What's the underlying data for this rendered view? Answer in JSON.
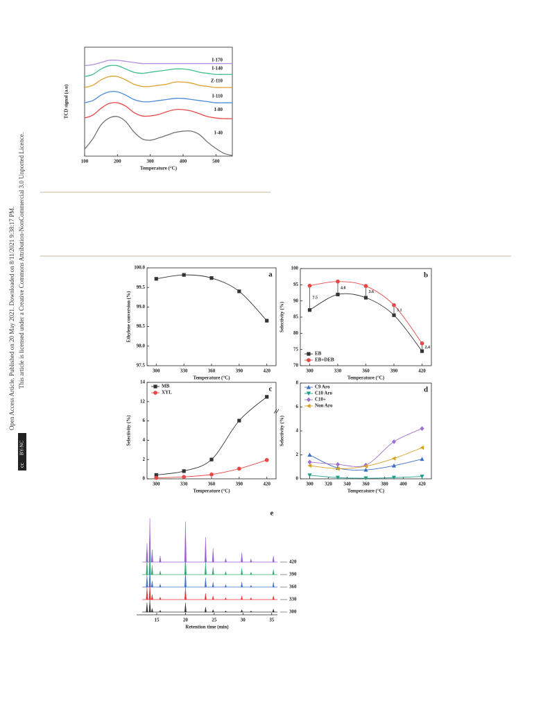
{
  "sidebar": {
    "line1": "Open Access Article. Published on 20 May 2021. Downloaded on 8/11/2021 9:38:17 PM.",
    "line2": "This article is licensed under a Creative Commons Attribution-NonCommercial 3.0 Unported Licence.",
    "badge_cc": "cc",
    "badge_by": "BY-NC"
  },
  "chart_data": [
    {
      "type": "line",
      "xlabel": "Temperature (°C)",
      "ylabel": "TCD signal (a.u)",
      "inline_labels": true,
      "x": [
        100,
        125,
        150,
        175,
        200,
        225,
        250,
        275,
        300,
        325,
        350,
        375,
        400,
        425,
        450,
        475,
        500,
        525,
        550
      ],
      "xlim": [
        100,
        550
      ],
      "xticks": [
        100,
        200,
        300,
        400,
        500
      ],
      "ylim": [
        0,
        100
      ],
      "series": [
        {
          "name": "I-170",
          "color": "#b28ee0",
          "values": [
            83,
            84,
            86,
            88,
            88,
            87,
            86,
            85,
            85,
            85,
            85,
            85,
            85,
            85,
            85,
            85,
            85,
            85,
            85
          ]
        },
        {
          "name": "I-140",
          "color": "#3cbf8a",
          "values": [
            73,
            75,
            80,
            83,
            83,
            80,
            77,
            76,
            77,
            78,
            79,
            80,
            80,
            79,
            77,
            76,
            75,
            75,
            75
          ]
        },
        {
          "name": "Z-110",
          "color": "#e0a030",
          "values": [
            63,
            65,
            70,
            73,
            73,
            70,
            66,
            64,
            64,
            65,
            66,
            68,
            68,
            67,
            65,
            64,
            63,
            63,
            63
          ]
        },
        {
          "name": "I-110",
          "color": "#4a8ad8",
          "values": [
            49,
            51,
            56,
            59,
            59,
            56,
            52,
            50,
            50,
            51,
            52,
            53,
            53,
            52,
            51,
            50,
            49,
            49,
            49
          ]
        },
        {
          "name": "I-80",
          "color": "#e84848",
          "values": [
            35.0,
            37.6,
            43.9,
            48.4,
            49.0,
            45.9,
            40.1,
            36.9,
            36.9,
            38.2,
            40.8,
            42.7,
            42.7,
            41.4,
            38.9,
            36.3,
            35.0,
            34.4,
            34.4
          ]
        },
        {
          "name": "I-40",
          "color": "#707070",
          "values": [
            6.4,
            15.9,
            28.7,
            35.0,
            36.3,
            31.8,
            22.3,
            15.9,
            14.6,
            16.6,
            19.1,
            21.7,
            22.9,
            22.9,
            19.7,
            12.7,
            7.0,
            2.5,
            0.6
          ]
        }
      ]
    },
    {
      "type": "line",
      "panel_label": "a",
      "xlabel": "Temperature (°C)",
      "ylabel": "Ethylene conversion (%)",
      "x": [
        300,
        330,
        360,
        390,
        420
      ],
      "xlim": [
        290,
        430
      ],
      "xticks": [
        300,
        330,
        360,
        390,
        420
      ],
      "ylim": [
        97.5,
        100.0
      ],
      "yticks": [
        97.5,
        {
          "value": 98.0,
          "label": "98.0"
        },
        98.5,
        {
          "value": 99.0,
          "label": "99.0"
        },
        99.5,
        {
          "value": 100.0,
          "label": "100.0"
        }
      ],
      "series": [
        {
          "color": "#333333",
          "marker": "square",
          "values": [
            99.72,
            99.82,
            99.74,
            99.4,
            98.65
          ]
        }
      ]
    },
    {
      "type": "line",
      "panel_label": "b",
      "xlabel": "Temperature (°C)",
      "ylabel": "Selectivity (%)",
      "legend": "lower left",
      "x": [
        300,
        330,
        360,
        390,
        420
      ],
      "xlim": [
        290,
        430
      ],
      "xticks": [
        300,
        330,
        360,
        390,
        420
      ],
      "ylim": [
        70,
        100
      ],
      "yticks": [
        70,
        75,
        80,
        85,
        90,
        95,
        100
      ],
      "gap_labels": [
        "7.5",
        "4.0",
        "3.6",
        "3.1",
        "2.4"
      ],
      "series": [
        {
          "name": "EB",
          "color": "#333333",
          "marker": "square",
          "values": [
            87.2,
            92.0,
            91.0,
            85.6,
            74.5
          ]
        },
        {
          "name": "EB+DEB",
          "color": "#e84848",
          "marker": "circle",
          "values": [
            94.7,
            96.0,
            94.6,
            88.7,
            76.9
          ]
        }
      ]
    },
    {
      "type": "line",
      "panel_label": "c",
      "xlabel": "Temperature (°C)",
      "ylabel": "Selectivity (%)",
      "legend": "upper left",
      "axis_break": true,
      "x": [
        300,
        330,
        360,
        390,
        420
      ],
      "xlim": [
        290,
        430
      ],
      "xticks": [
        300,
        330,
        360,
        390,
        420
      ],
      "ylim": [
        0,
        14
      ],
      "yticks": [
        0,
        2,
        4,
        6,
        12,
        14
      ],
      "series": [
        {
          "name": "MB",
          "color": "#333333",
          "marker": "square",
          "values": [
            0.4,
            0.8,
            2.0,
            6.1,
            12.5
          ]
        },
        {
          "name": "XYL",
          "color": "#e84848",
          "marker": "circle",
          "values": [
            0.1,
            0.2,
            0.45,
            1.05,
            1.95
          ]
        }
      ]
    },
    {
      "type": "line",
      "panel_label": "d",
      "xlabel": "Temperature (°C)",
      "ylabel": "Selectivity (%)",
      "legend": "upper left",
      "x": [
        300,
        330,
        360,
        390,
        420
      ],
      "xlim": [
        290,
        430
      ],
      "xticks": [
        300,
        320,
        340,
        360,
        380,
        400,
        420
      ],
      "ylim": [
        0,
        8
      ],
      "yticks": [
        0,
        2,
        4,
        6,
        8
      ],
      "series": [
        {
          "name": "C9 Aro",
          "color": "#3a6fc4",
          "marker": "triangle-up",
          "values": [
            2.0,
            0.9,
            0.75,
            1.1,
            1.65
          ]
        },
        {
          "name": "C10 Aro",
          "color": "#20a08a",
          "marker": "triangle-down",
          "values": [
            0.3,
            0.1,
            0.05,
            0.1,
            0.2
          ]
        },
        {
          "name": "C10+",
          "color": "#a070d0",
          "marker": "diamond",
          "values": [
            1.4,
            1.2,
            1.15,
            3.1,
            4.2
          ]
        },
        {
          "name": "Non Aro",
          "color": "#d8a020",
          "marker": "triangle-left",
          "values": [
            1.1,
            0.85,
            1.05,
            1.7,
            2.6
          ]
        }
      ]
    },
    {
      "type": "chromatogram",
      "panel_label": "e",
      "xlabel": "Retention time (min)",
      "x": [
        13.3,
        13.8,
        14.2,
        15.6,
        20.0,
        23.5,
        24.8,
        27.0,
        29.8,
        31.4,
        35.3
      ],
      "xlim": [
        11.5,
        36
      ],
      "xticks": [
        15,
        20,
        25,
        30,
        35
      ],
      "series": [
        {
          "name": "420",
          "color": "#9b59d0",
          "values": [
            30,
            70,
            20,
            10,
            65,
            40,
            22,
            6,
            15,
            5,
            10
          ]
        },
        {
          "name": "390",
          "color": "#2eaa6e",
          "values": [
            25,
            40,
            15,
            6,
            30,
            20,
            12,
            5,
            10,
            4,
            8
          ]
        },
        {
          "name": "360",
          "color": "#3a6fc4",
          "values": [
            20,
            30,
            10,
            5,
            25,
            15,
            8,
            4,
            8,
            3,
            8
          ]
        },
        {
          "name": "330",
          "color": "#e03030",
          "values": [
            20,
            25,
            8,
            4,
            20,
            10,
            6,
            3,
            6,
            3,
            6
          ]
        },
        {
          "name": "300",
          "color": "#333333",
          "values": [
            15,
            20,
            6,
            3,
            15,
            8,
            4,
            2,
            4,
            2,
            5
          ]
        }
      ]
    }
  ]
}
